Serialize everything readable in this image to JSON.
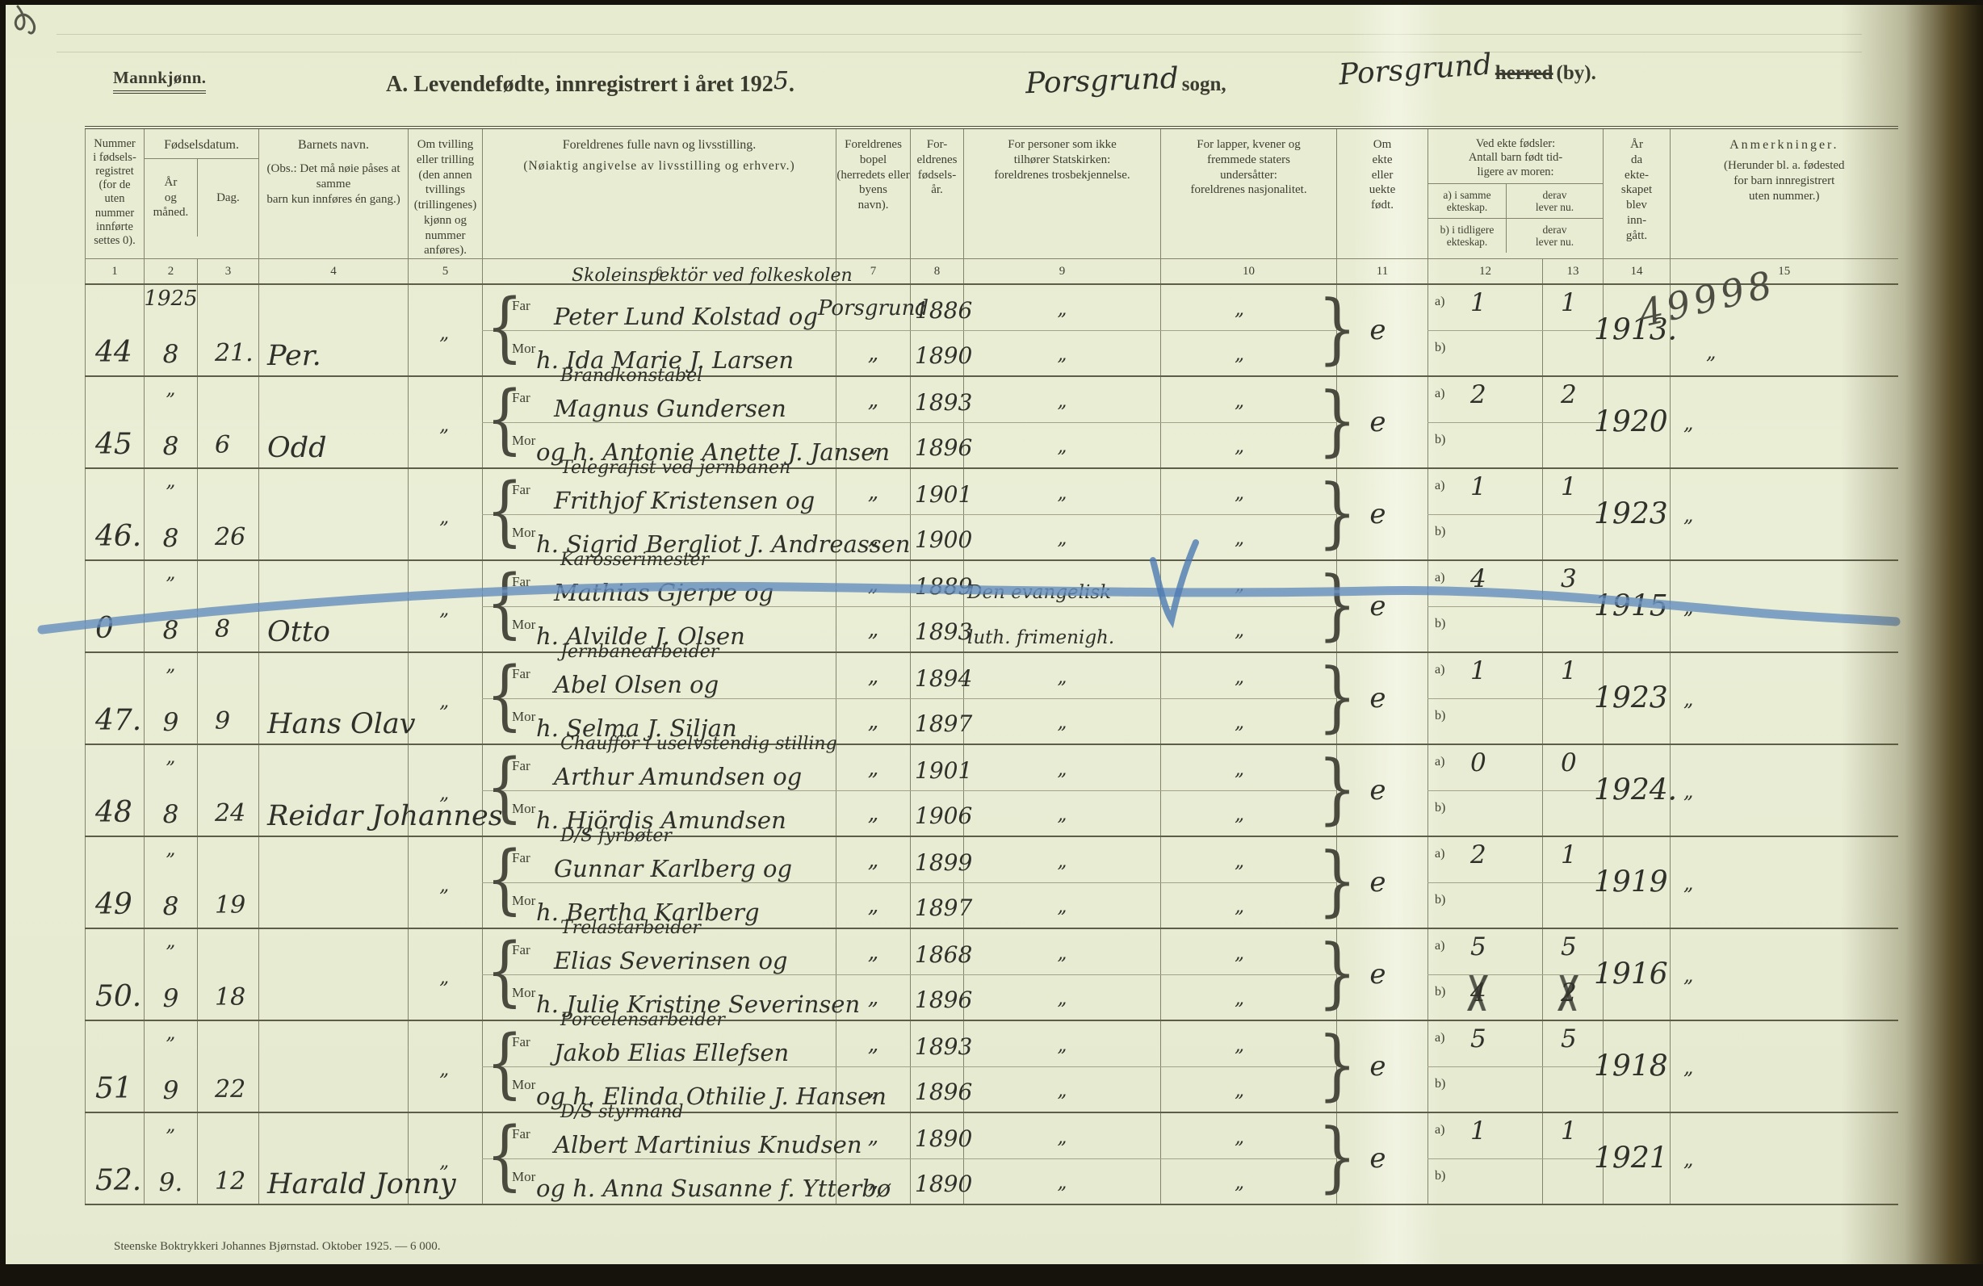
{
  "page": {
    "footer": "Steenske Boktrykkeri Johannes Bjørnstad.  Oktober 1925. — 6 000."
  },
  "header": {
    "sex_label": "Mannkjønn.",
    "title_prefix": "A.  Levendefødte, innregistrert i året 192",
    "title_year_hand": "5",
    "title_suffix": ".",
    "parish_hand": "Porsgrund",
    "parish_print": "sogn,",
    "district_hand": "Porsgrund",
    "district_struck": "herred",
    "district_print": "(by)."
  },
  "annotations": {
    "blue_pencil_color": "#5d87ba",
    "pencil_note": "49998"
  },
  "table": {
    "labels": {
      "far": "Far",
      "mor": "Mor",
      "a": "a)",
      "b": "b)",
      "brace_open": "{",
      "brace_close": "}"
    },
    "col_numbers": [
      "1",
      "2",
      "3",
      "4",
      "5",
      "6",
      "7",
      "8",
      "9",
      "10",
      "11",
      "12",
      "13",
      "14",
      "15"
    ],
    "columns": {
      "c1": "Nummer\ni fødsels-\nregistret\n(for de\nuten\nnummer\ninnførte\nsettes 0).",
      "fd": "Fødselsdatum.",
      "c2": "År\nog\nmåned.",
      "c3": "Dag.",
      "c4a": "Barnets navn.",
      "c4b": "(Obs.:  Det må nøie påses at samme\nbarn kun innføres én gang.)",
      "c5": "Om tvilling\neller trilling\n(den annen\ntvillings\n(trillingenes)\nkjønn og\nnummer\nanføres).",
      "c6a": "Foreldrenes fulle navn og livsstilling.",
      "c6b": "(Nøiaktig angivelse av livsstilling og erhverv.)",
      "c7": "Foreldrenes bopel\n(herredets eller byens\nnavn).",
      "c8": "For-\neldrenes\nfødsels-\når.",
      "c9": "For personer som ikke\ntilhører Statskirken:\nforeldrenes trosbekjennelse.",
      "c10": "For lapper, kvener og\nfremmede staters\nundersåtter:\nforeldrenes nasjonalitet.",
      "c11": "Om\nekte\neller\nuekte\nfødt.",
      "c12t": "Ved ekte fødsler:\nAntall barn født tid-\nligere av moren:",
      "c12a": "a) i samme\nekteskap.",
      "c12b": "b) i tidligere\nekteskap.",
      "c13a": "derav\nlever nu.",
      "c13b": "derav\nlever nu.",
      "c14": "År\nda\nekte-\nskapet\nblev\ninn-\ngått.",
      "c15a": "Anmerkninger.",
      "c15b": "(Herunder bl. a. fødested\nfor barn innregistrert\nuten nummer.)"
    },
    "records": [
      {
        "nr": "44",
        "year_label": "1925",
        "month": "8",
        "day": "21.",
        "name": "Per.",
        "twin": "„",
        "occ": "Skoleinspektör ved folkeskolen",
        "far": "Peter Lund Kolstad og",
        "mor": "h. Ida Marie J. Larsen",
        "bopel_f": "Porsgrund",
        "bopel_m": "„",
        "byear_f": "1886",
        "byear_m": "1890",
        "rel_f": "„",
        "rel_m": "„",
        "nat_f": "„",
        "nat_m": "„",
        "legit": "e",
        "a_n": "1",
        "a_l": "1",
        "b_n": "",
        "b_l": "",
        "myear": "1913.",
        "note": "49998",
        "note_ditto": "„"
      },
      {
        "nr": "45",
        "year_label": "„",
        "month": "8",
        "day": "6",
        "name": "Odd",
        "twin": "„",
        "occ": "Brandkonstabel",
        "far": "Magnus Gundersen",
        "mor": "og h. Antonie Anette J. Jansen",
        "bopel_f": "„",
        "bopel_m": "„",
        "byear_f": "1893",
        "byear_m": "1896",
        "rel_f": "„",
        "rel_m": "„",
        "nat_f": "„",
        "nat_m": "„",
        "legit": "e",
        "a_n": "2",
        "a_l": "2",
        "b_n": "",
        "b_l": "",
        "myear": "1920",
        "note": "",
        "note_ditto": "„"
      },
      {
        "nr": "46.",
        "year_label": "„",
        "month": "8",
        "day": "26",
        "name": "",
        "twin": "„",
        "occ": "Telegrafist ved jernbanen",
        "far": "Frithjof Kristensen og",
        "mor": "h. Sigrid Bergliot J. Andreassen",
        "bopel_f": "„",
        "bopel_m": "„",
        "byear_f": "1901",
        "byear_m": "1900",
        "rel_f": "„",
        "rel_m": "„",
        "nat_f": "„",
        "nat_m": "„",
        "legit": "e",
        "a_n": "1",
        "a_l": "1",
        "b_n": "",
        "b_l": "",
        "myear": "1923",
        "note": "",
        "note_ditto": "„"
      },
      {
        "nr": "0",
        "year_label": "„",
        "month": "8",
        "day": "8",
        "name": "Otto",
        "twin": "„",
        "occ": "Karosserimester",
        "far": "Mathias Gjerpe og",
        "mor": "h. Alvilde J. Olsen",
        "bopel_f": "„",
        "bopel_m": "„",
        "byear_f": "1889",
        "byear_m": "1893",
        "rel_f": "Den evangelisk",
        "rel_m": "luth. frimenigh.",
        "nat_f": "„",
        "nat_m": "„",
        "legit": "e",
        "a_n": "4",
        "a_l": "3",
        "b_n": "",
        "b_l": "",
        "myear": "1915",
        "note": "",
        "note_ditto": "„"
      },
      {
        "nr": "47.",
        "year_label": "„",
        "month": "9",
        "day": "9",
        "name": "Hans Olav",
        "twin": "„",
        "occ": "Jernbanearbeider",
        "far": "Abel Olsen og",
        "mor": "h. Selma J. Siljan",
        "bopel_f": "„",
        "bopel_m": "„",
        "byear_f": "1894",
        "byear_m": "1897",
        "rel_f": "„",
        "rel_m": "„",
        "nat_f": "„",
        "nat_m": "„",
        "legit": "e",
        "a_n": "1",
        "a_l": "1",
        "b_n": "",
        "b_l": "",
        "myear": "1923",
        "note": "",
        "note_ditto": "„"
      },
      {
        "nr": "48",
        "year_label": "„",
        "month": "8",
        "day": "24",
        "name": "Reidar Johannes",
        "twin": "„",
        "occ": "Chaufför i uselvstendig stilling",
        "far": "Arthur Amundsen og",
        "mor": "h. Hjördis Amundsen",
        "bopel_f": "„",
        "bopel_m": "„",
        "byear_f": "1901",
        "byear_m": "1906",
        "rel_f": "„",
        "rel_m": "„",
        "nat_f": "„",
        "nat_m": "„",
        "legit": "e",
        "a_n": "0",
        "a_l": "0",
        "b_n": "",
        "b_l": "",
        "myear": "1924.",
        "note": "",
        "note_ditto": "„"
      },
      {
        "nr": "49",
        "year_label": "„",
        "month": "8",
        "day": "19",
        "name": "",
        "twin": "„",
        "occ": "D/S fyrbøter",
        "far": "Gunnar Karlberg og",
        "mor": "h. Bertha Karlberg",
        "bopel_f": "„",
        "bopel_m": "„",
        "byear_f": "1899",
        "byear_m": "1897",
        "rel_f": "„",
        "rel_m": "„",
        "nat_f": "„",
        "nat_m": "„",
        "legit": "e",
        "a_n": "2",
        "a_l": "1",
        "b_n": "",
        "b_l": "",
        "myear": "1919",
        "note": "",
        "note_ditto": "„"
      },
      {
        "nr": "50.",
        "year_label": "„",
        "month": "9",
        "day": "18",
        "name": "",
        "twin": "„",
        "occ": "Trelastarbeider",
        "far": "Elias Severinsen og",
        "mor": "h. Julie Kristine Severinsen",
        "bopel_f": "„",
        "bopel_m": "„",
        "byear_f": "1868",
        "byear_m": "1896",
        "rel_f": "„",
        "rel_m": "„",
        "nat_f": "„",
        "nat_m": "„",
        "legit": "e",
        "a_n": "5",
        "a_l": "5",
        "b_n": "4",
        "b_l": "2",
        "myear": "1916",
        "note": "",
        "note_ditto": "„"
      },
      {
        "nr": "51",
        "year_label": "„",
        "month": "9",
        "day": "22",
        "name": "",
        "twin": "„",
        "occ": "Porcelensarbeider",
        "far": "Jakob Elias Ellefsen",
        "mor": "og h. Elinda Othilie J. Hansen",
        "bopel_f": "„",
        "bopel_m": "„",
        "byear_f": "1893",
        "byear_m": "1896",
        "rel_f": "„",
        "rel_m": "„",
        "nat_f": "„",
        "nat_m": "„",
        "legit": "e",
        "a_n": "5",
        "a_l": "5",
        "b_n": "",
        "b_l": "",
        "myear": "1918",
        "note": "",
        "note_ditto": "„"
      },
      {
        "nr": "52.",
        "year_label": "„",
        "month": "9.",
        "day": "12",
        "name": "Harald Jonny",
        "twin": "„",
        "occ": "D/S styrmand",
        "far": "Albert Martinius Knudsen",
        "mor": "og h. Anna Susanne f. Ytterbø",
        "bopel_f": "„",
        "bopel_m": "„",
        "byear_f": "1890",
        "byear_m": "1890",
        "rel_f": "„",
        "rel_m": "„",
        "nat_f": "„",
        "nat_m": "„",
        "legit": "e",
        "a_n": "1",
        "a_l": "1",
        "b_n": "",
        "b_l": "",
        "myear": "1921",
        "note": "",
        "note_ditto": "„"
      }
    ]
  }
}
